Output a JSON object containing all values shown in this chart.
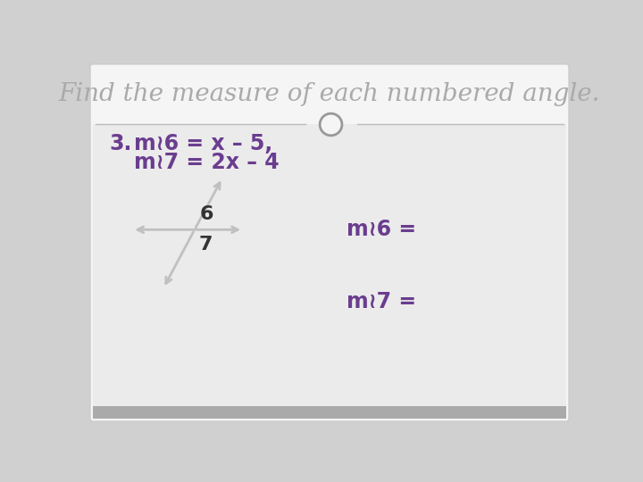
{
  "title": "Find the measure of each numbered angle.",
  "title_color": "#aaaaaa",
  "title_fontsize": 20,
  "bg_outer": "#d0d0d0",
  "bg_white": "#f5f5f5",
  "bg_content": "#ebebeb",
  "text_color": "#6a3d8f",
  "dark_text": "#333333",
  "problem_number": "3.",
  "line1": "m≀6 = x – 5,",
  "line2": "m≀7 = 2x – 4",
  "answer1": "m≀6 =",
  "answer2": "m≀7 =",
  "label6": "6",
  "label7": "7",
  "arrow_color": "#c0c0c0",
  "sep_color": "#bbbbbb",
  "circle_color": "#999999",
  "fontsize_text": 17,
  "fontsize_labels": 16
}
